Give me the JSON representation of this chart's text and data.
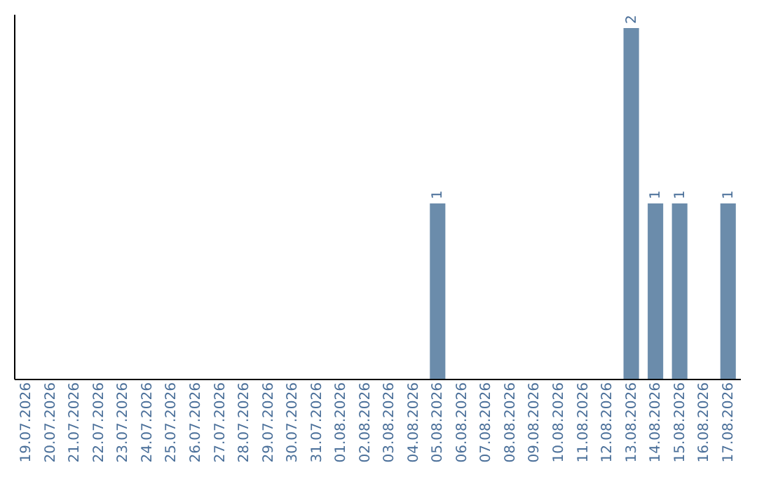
{
  "chart_data": {
    "type": "bar",
    "categories": [
      "19.07.2026",
      "20.07.2026",
      "21.07.2026",
      "22.07.2026",
      "23.07.2026",
      "24.07.2026",
      "25.07.2026",
      "26.07.2026",
      "27.07.2026",
      "28.07.2026",
      "29.07.2026",
      "30.07.2026",
      "31.07.2026",
      "01.08.2026",
      "02.08.2026",
      "03.08.2026",
      "04.08.2026",
      "05.08.2026",
      "06.08.2026",
      "07.08.2026",
      "08.08.2026",
      "09.08.2026",
      "10.08.2026",
      "11.08.2026",
      "12.08.2026",
      "13.08.2026",
      "14.08.2026",
      "15.08.2026",
      "16.08.2026",
      "17.08.2026"
    ],
    "values": [
      null,
      null,
      null,
      null,
      null,
      null,
      null,
      null,
      null,
      null,
      null,
      null,
      null,
      null,
      null,
      null,
      null,
      1,
      null,
      null,
      null,
      null,
      null,
      null,
      null,
      2,
      1,
      1,
      null,
      1
    ],
    "value_labels": [
      null,
      null,
      null,
      null,
      null,
      null,
      null,
      null,
      null,
      null,
      null,
      null,
      null,
      null,
      null,
      null,
      null,
      "1",
      null,
      null,
      null,
      null,
      null,
      null,
      null,
      "2",
      "1",
      "1",
      null,
      "1"
    ],
    "color": "#6b8cab",
    "tick_labels": "x",
    "grid": false
  }
}
